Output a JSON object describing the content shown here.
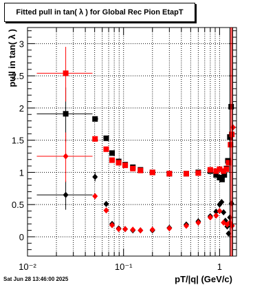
{
  "chart_data": {
    "type": "scatter",
    "title": "Fitted pull in tan( λ ) for Global Rec Pion EtapT",
    "xlabel": "pT/|q| (GeV/c)",
    "ylabel": "pull in tan( λ )",
    "xscale": "log",
    "xlim": [
      0.01,
      1.5
    ],
    "ylim": [
      -0.3,
      3.25
    ],
    "grid": true,
    "x_ticks": [
      {
        "v": 0.01,
        "label": "10⁻²"
      },
      {
        "v": 0.1,
        "label": "10⁻¹"
      },
      {
        "v": 1,
        "label": "1"
      }
    ],
    "y_ticks": [
      {
        "v": 0,
        "label": "0"
      },
      {
        "v": 0.5,
        "label": "0.5"
      },
      {
        "v": 1,
        "label": "1"
      },
      {
        "v": 1.5,
        "label": "1.5"
      },
      {
        "v": 2,
        "label": "2"
      },
      {
        "v": 2.5,
        "label": "2.5"
      },
      {
        "v": 3,
        "label": "3"
      }
    ],
    "series": [
      {
        "color": "#000000",
        "marker": "square",
        "points": [
          {
            "x": 0.025,
            "y": 1.91,
            "xerr": [
              0.0125,
              0.0475
            ],
            "yerr": [
              1.47,
              2.32
            ]
          },
          {
            "x": 0.0505,
            "y": 1.83,
            "xerr": [
              0.0475,
              0.0545
            ],
            "yerr": [
              1.8,
              1.87
            ]
          },
          {
            "x": 0.066,
            "y": 1.53,
            "xerr": [
              0.064,
              0.068
            ]
          },
          {
            "x": 0.076,
            "y": 1.3
          },
          {
            "x": 0.089,
            "y": 1.17
          },
          {
            "x": 0.104,
            "y": 1.12
          },
          {
            "x": 0.125,
            "y": 1.08
          },
          {
            "x": 0.15,
            "y": 1.04
          },
          {
            "x": 0.2,
            "y": 1.0
          },
          {
            "x": 0.3,
            "y": 0.98
          },
          {
            "x": 0.45,
            "y": 0.98
          },
          {
            "x": 0.6,
            "y": 1.0
          },
          {
            "x": 0.8,
            "y": 1.02
          },
          {
            "x": 0.92,
            "y": 0.96
          },
          {
            "x": 1.0,
            "y": 0.92
          },
          {
            "x": 1.06,
            "y": 0.89
          },
          {
            "x": 1.12,
            "y": 0.96
          },
          {
            "x": 1.18,
            "y": 1.06
          },
          {
            "x": 1.22,
            "y": 1.18
          },
          {
            "x": 1.28,
            "y": 1.55
          },
          {
            "x": 1.32,
            "y": 2.02
          }
        ]
      },
      {
        "color": "#ff0000",
        "marker": "square",
        "points": [
          {
            "x": 0.025,
            "y": 2.54,
            "xerr": [
              0.0125,
              0.0475
            ],
            "yerr": [
              2.1,
              2.95
            ]
          },
          {
            "x": 0.0505,
            "y": 1.52
          },
          {
            "x": 0.066,
            "y": 1.36
          },
          {
            "x": 0.076,
            "y": 1.19
          },
          {
            "x": 0.089,
            "y": 1.15
          },
          {
            "x": 0.104,
            "y": 1.11
          },
          {
            "x": 0.125,
            "y": 1.06
          },
          {
            "x": 0.15,
            "y": 1.03
          },
          {
            "x": 0.2,
            "y": 1.0
          },
          {
            "x": 0.3,
            "y": 0.98
          },
          {
            "x": 0.45,
            "y": 0.98
          },
          {
            "x": 0.6,
            "y": 0.99
          },
          {
            "x": 0.8,
            "y": 1.04
          },
          {
            "x": 0.92,
            "y": 1.02
          },
          {
            "x": 1.0,
            "y": 1.05
          },
          {
            "x": 1.1,
            "y": 1.02
          },
          {
            "x": 1.18,
            "y": 1.05
          },
          {
            "x": 1.24,
            "y": 1.15
          },
          {
            "x": 1.3,
            "y": 1.43
          },
          {
            "x": 1.34,
            "y": 1.59
          }
        ]
      },
      {
        "color": "#000000",
        "marker": "diamond",
        "points": [
          {
            "x": 0.025,
            "y": 0.65,
            "xerr": [
              0.0125,
              0.0475
            ],
            "yerr": [
              0.42,
              0.87
            ]
          },
          {
            "x": 0.0505,
            "y": 0.93,
            "yerr": [
              0.86,
              1.0
            ]
          },
          {
            "x": 0.066,
            "y": 0.51
          },
          {
            "x": 0.076,
            "y": 0.2
          },
          {
            "x": 0.089,
            "y": 0.13
          },
          {
            "x": 0.104,
            "y": 0.12
          },
          {
            "x": 0.125,
            "y": 0.1
          },
          {
            "x": 0.15,
            "y": 0.1
          },
          {
            "x": 0.2,
            "y": 0.1
          },
          {
            "x": 0.3,
            "y": 0.14
          },
          {
            "x": 0.45,
            "y": 0.19
          },
          {
            "x": 0.6,
            "y": 0.24
          },
          {
            "x": 0.8,
            "y": 0.32
          },
          {
            "x": 0.92,
            "y": 0.39
          },
          {
            "x": 1.0,
            "y": 0.5
          },
          {
            "x": 1.05,
            "y": 0.54
          },
          {
            "x": 1.1,
            "y": 0.38
          },
          {
            "x": 1.15,
            "y": 0.25
          },
          {
            "x": 1.2,
            "y": 0.16
          },
          {
            "x": 1.24,
            "y": 0.05
          },
          {
            "x": 1.28,
            "y": 0.3
          },
          {
            "x": 1.33,
            "y": 0.52
          }
        ]
      },
      {
        "color": "#ff0000",
        "marker": "diamond",
        "points": [
          {
            "x": 0.025,
            "y": 1.25,
            "xerr": [
              0.0125,
              0.0475
            ],
            "yerr": [
              0.85,
              1.62
            ]
          },
          {
            "x": 0.0505,
            "y": 0.63
          },
          {
            "x": 0.066,
            "y": 0.41
          },
          {
            "x": 0.076,
            "y": 0.18
          },
          {
            "x": 0.089,
            "y": 0.12
          },
          {
            "x": 0.104,
            "y": 0.12
          },
          {
            "x": 0.125,
            "y": 0.11
          },
          {
            "x": 0.15,
            "y": 0.1
          },
          {
            "x": 0.2,
            "y": 0.11
          },
          {
            "x": 0.3,
            "y": 0.13
          },
          {
            "x": 0.45,
            "y": 0.17
          },
          {
            "x": 0.6,
            "y": 0.22
          },
          {
            "x": 0.8,
            "y": 0.3
          },
          {
            "x": 0.92,
            "y": 0.33
          },
          {
            "x": 1.0,
            "y": 0.4
          },
          {
            "x": 1.1,
            "y": 0.22
          },
          {
            "x": 1.2,
            "y": 0.19
          },
          {
            "x": 1.28,
            "y": 0.22
          },
          {
            "x": 1.35,
            "y": 0.17
          },
          {
            "x": 1.38,
            "y": 1.7
          }
        ]
      }
    ]
  },
  "footer": {
    "datestamp": "Sat Jun 28 13:46:00 2025"
  }
}
